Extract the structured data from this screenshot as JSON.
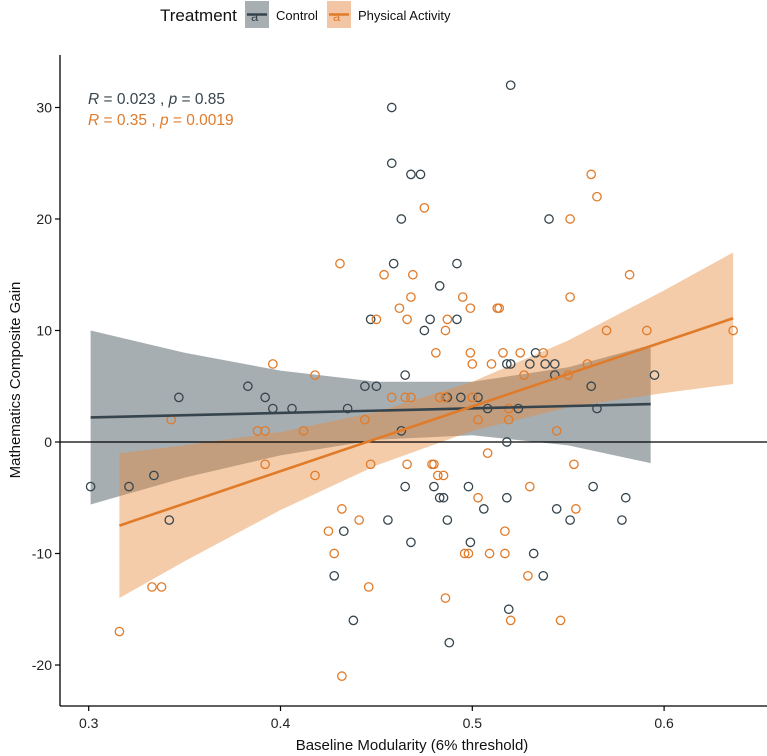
{
  "chart_data": {
    "type": "scatter",
    "title": "",
    "xlabel": "Baseline Modularity (6% threshold)",
    "ylabel": "Mathematics Composite Gain",
    "xlim": [
      0.285,
      0.653
    ],
    "ylim": [
      -23.2,
      34.6
    ],
    "xticks": [
      0.3,
      0.4,
      0.5,
      0.6
    ],
    "xtick_labels": [
      "0.3",
      "0.4",
      "0.5",
      "0.6"
    ],
    "yticks": [
      -20,
      -10,
      0,
      10,
      20,
      30
    ],
    "ytick_labels": [
      "-20",
      "-10",
      "0",
      "10",
      "20",
      "30"
    ],
    "hline": 0,
    "grid": false,
    "legend": {
      "title": "Treatment",
      "placement": "top",
      "entries": [
        "Control",
        "Physical Activity"
      ],
      "key_glyph": "a"
    },
    "annotations": [
      {
        "series": "Control",
        "r_label": "R",
        "r_value": " = 0.023 , ",
        "p_label": "p",
        "p_value": " = 0.85"
      },
      {
        "series": "Physical Activity",
        "r_label": "R",
        "r_value": " = 0.35 , ",
        "p_label": "p",
        "p_value": " = 0.0019"
      }
    ],
    "series": [
      {
        "name": "Control",
        "color": "#36454d",
        "band_color": "#37474f",
        "points": [
          [
            0.301,
            -4
          ],
          [
            0.321,
            -4
          ],
          [
            0.334,
            -3
          ],
          [
            0.342,
            -7
          ],
          [
            0.347,
            4
          ],
          [
            0.383,
            5
          ],
          [
            0.392,
            4
          ],
          [
            0.396,
            3
          ],
          [
            0.406,
            3
          ],
          [
            0.435,
            3
          ],
          [
            0.444,
            5
          ],
          [
            0.45,
            5
          ],
          [
            0.465,
            6
          ],
          [
            0.463,
            1
          ],
          [
            0.465,
            -4
          ],
          [
            0.447,
            11
          ],
          [
            0.456,
            -7
          ],
          [
            0.433,
            -8
          ],
          [
            0.468,
            -9
          ],
          [
            0.428,
            -12
          ],
          [
            0.438,
            -16
          ],
          [
            0.475,
            10
          ],
          [
            0.478,
            11
          ],
          [
            0.492,
            11
          ],
          [
            0.533,
            8
          ],
          [
            0.518,
            7
          ],
          [
            0.52,
            7
          ],
          [
            0.53,
            7
          ],
          [
            0.538,
            7
          ],
          [
            0.543,
            7
          ],
          [
            0.543,
            6
          ],
          [
            0.494,
            4
          ],
          [
            0.503,
            4
          ],
          [
            0.508,
            3
          ],
          [
            0.524,
            3
          ],
          [
            0.565,
            3
          ],
          [
            0.562,
            5
          ],
          [
            0.595,
            6
          ],
          [
            0.518,
            0
          ],
          [
            0.487,
            4
          ],
          [
            0.48,
            -4
          ],
          [
            0.498,
            -4
          ],
          [
            0.563,
            -4
          ],
          [
            0.483,
            -5
          ],
          [
            0.485,
            -5
          ],
          [
            0.518,
            -5
          ],
          [
            0.58,
            -5
          ],
          [
            0.506,
            -6
          ],
          [
            0.544,
            -6
          ],
          [
            0.487,
            -7
          ],
          [
            0.551,
            -7
          ],
          [
            0.578,
            -7
          ],
          [
            0.499,
            -9
          ],
          [
            0.532,
            -10
          ],
          [
            0.537,
            -12
          ],
          [
            0.519,
            -15
          ],
          [
            0.488,
            -18
          ],
          [
            0.52,
            32
          ],
          [
            0.458,
            30
          ],
          [
            0.458,
            25
          ],
          [
            0.468,
            24
          ],
          [
            0.473,
            24
          ],
          [
            0.463,
            20
          ],
          [
            0.54,
            20
          ],
          [
            0.459,
            16
          ],
          [
            0.492,
            16
          ],
          [
            0.483,
            14
          ]
        ],
        "fit": {
          "x": [
            0.301,
            0.35,
            0.4,
            0.45,
            0.5,
            0.55,
            0.593
          ],
          "y": [
            2.2,
            2.4,
            2.6,
            2.8,
            3.0,
            3.2,
            3.4
          ],
          "lower": [
            -5.6,
            -3.2,
            -1.2,
            0.2,
            0.6,
            -0.3,
            -1.9
          ],
          "upper": [
            10.0,
            8.0,
            6.4,
            5.4,
            5.4,
            6.7,
            8.7
          ]
        }
      },
      {
        "name": "Physical Activity",
        "color": "#e07b2a",
        "band_color": "#e58a3c",
        "points": [
          [
            0.396,
            7
          ],
          [
            0.418,
            6
          ],
          [
            0.343,
            2
          ],
          [
            0.388,
            1
          ],
          [
            0.392,
            1
          ],
          [
            0.412,
            1
          ],
          [
            0.444,
            2
          ],
          [
            0.458,
            4
          ],
          [
            0.465,
            4
          ],
          [
            0.468,
            4
          ],
          [
            0.392,
            -2
          ],
          [
            0.418,
            -3
          ],
          [
            0.447,
            -2
          ],
          [
            0.466,
            -2
          ],
          [
            0.432,
            -6
          ],
          [
            0.441,
            -7
          ],
          [
            0.425,
            -8
          ],
          [
            0.428,
            -10
          ],
          [
            0.446,
            -13
          ],
          [
            0.333,
            -13
          ],
          [
            0.338,
            -13
          ],
          [
            0.316,
            -17
          ],
          [
            0.432,
            -21
          ],
          [
            0.45,
            11
          ],
          [
            0.462,
            12
          ],
          [
            0.466,
            11
          ],
          [
            0.475,
            21
          ],
          [
            0.562,
            24
          ],
          [
            0.565,
            22
          ],
          [
            0.551,
            20
          ],
          [
            0.582,
            15
          ],
          [
            0.454,
            15
          ],
          [
            0.469,
            15
          ],
          [
            0.468,
            13
          ],
          [
            0.495,
            13
          ],
          [
            0.551,
            13
          ],
          [
            0.499,
            12
          ],
          [
            0.513,
            12
          ],
          [
            0.514,
            12
          ],
          [
            0.487,
            11
          ],
          [
            0.486,
            10
          ],
          [
            0.481,
            8
          ],
          [
            0.499,
            8
          ],
          [
            0.5,
            7
          ],
          [
            0.51,
            7
          ],
          [
            0.516,
            8
          ],
          [
            0.525,
            8
          ],
          [
            0.537,
            8
          ],
          [
            0.527,
            6
          ],
          [
            0.55,
            6
          ],
          [
            0.56,
            7
          ],
          [
            0.57,
            10
          ],
          [
            0.591,
            10
          ],
          [
            0.636,
            10
          ],
          [
            0.483,
            4
          ],
          [
            0.486,
            4
          ],
          [
            0.5,
            4
          ],
          [
            0.503,
            2
          ],
          [
            0.519,
            3
          ],
          [
            0.519,
            2
          ],
          [
            0.544,
            1
          ],
          [
            0.508,
            -1
          ],
          [
            0.479,
            -2
          ],
          [
            0.48,
            -2
          ],
          [
            0.482,
            -3
          ],
          [
            0.485,
            -3
          ],
          [
            0.553,
            -2
          ],
          [
            0.53,
            -4
          ],
          [
            0.503,
            -5
          ],
          [
            0.554,
            -6
          ],
          [
            0.517,
            -8
          ],
          [
            0.496,
            -10
          ],
          [
            0.498,
            -10
          ],
          [
            0.509,
            -10
          ],
          [
            0.517,
            -10
          ],
          [
            0.529,
            -12
          ],
          [
            0.486,
            -14
          ],
          [
            0.52,
            -16
          ],
          [
            0.546,
            -16
          ],
          [
            0.431,
            16
          ]
        ],
        "fit": {
          "x": [
            0.316,
            0.35,
            0.4,
            0.45,
            0.5,
            0.55,
            0.6,
            0.636
          ],
          "y": [
            -7.5,
            -5.5,
            -2.6,
            0.3,
            3.2,
            6.1,
            9.0,
            11.1
          ],
          "lower": [
            -14.0,
            -10.7,
            -6.1,
            -2.1,
            1.0,
            3.1,
            4.4,
            5.2
          ],
          "upper": [
            -1.0,
            -0.3,
            0.9,
            2.7,
            5.4,
            9.1,
            13.6,
            17.0
          ]
        }
      }
    ]
  }
}
